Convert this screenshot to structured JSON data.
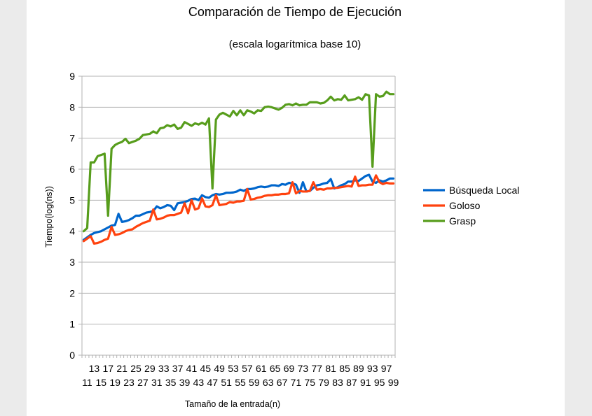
{
  "chart_data": {
    "type": "line",
    "title": "Comparación de Tiempo de Ejecución",
    "subtitle": "(escala logarítmica base 10)",
    "xlabel": "Tamaño de la entrada(n)",
    "ylabel": "Tiempo(log(ns))",
    "ylim": [
      0,
      9
    ],
    "yticks": [
      0,
      1,
      2,
      3,
      4,
      5,
      6,
      7,
      8,
      9
    ],
    "x": [
      10,
      11,
      12,
      13,
      14,
      15,
      16,
      17,
      18,
      19,
      20,
      21,
      22,
      23,
      24,
      25,
      26,
      27,
      28,
      29,
      30,
      31,
      32,
      33,
      34,
      35,
      36,
      37,
      38,
      39,
      40,
      41,
      42,
      43,
      44,
      45,
      46,
      47,
      48,
      49,
      50,
      51,
      52,
      53,
      54,
      55,
      56,
      57,
      58,
      59,
      60,
      61,
      62,
      63,
      64,
      65,
      66,
      67,
      68,
      69,
      70,
      71,
      72,
      73,
      74,
      75,
      76,
      77,
      78,
      79,
      80,
      81,
      82,
      83,
      84,
      85,
      86,
      87,
      88,
      89,
      90,
      91,
      92,
      93,
      94,
      95,
      96,
      97,
      98,
      99
    ],
    "xtick_labels_row1": [
      "13",
      "17",
      "21",
      "25",
      "29",
      "33",
      "37",
      "41",
      "45",
      "49",
      "53",
      "57",
      "61",
      "65",
      "69",
      "73",
      "77",
      "81",
      "85",
      "89",
      "93",
      "97"
    ],
    "xtick_labels_row2": [
      "11",
      "15",
      "19",
      "23",
      "27",
      "31",
      "35",
      "39",
      "43",
      "47",
      "51",
      "55",
      "59",
      "63",
      "67",
      "71",
      "75",
      "79",
      "83",
      "87",
      "91",
      "95",
      "99"
    ],
    "grid": "horizontal",
    "legend_position": "right",
    "series": [
      {
        "name": "Búsqueda Local",
        "color": "#0066cc",
        "values": [
          3.72,
          3.8,
          3.88,
          3.94,
          3.97,
          4.0,
          4.06,
          4.12,
          4.18,
          4.2,
          4.56,
          4.3,
          4.32,
          4.36,
          4.42,
          4.5,
          4.5,
          4.55,
          4.6,
          4.62,
          4.65,
          4.8,
          4.74,
          4.78,
          4.84,
          4.82,
          4.68,
          4.9,
          4.92,
          4.94,
          4.98,
          5.04,
          5.05,
          5.0,
          5.16,
          5.1,
          5.08,
          5.16,
          5.2,
          5.18,
          5.2,
          5.24,
          5.24,
          5.25,
          5.28,
          5.34,
          5.3,
          5.36,
          5.36,
          5.38,
          5.42,
          5.44,
          5.42,
          5.44,
          5.48,
          5.48,
          5.46,
          5.52,
          5.5,
          5.56,
          5.54,
          5.5,
          5.24,
          5.58,
          5.28,
          5.3,
          5.4,
          5.48,
          5.5,
          5.54,
          5.56,
          5.68,
          5.38,
          5.42,
          5.48,
          5.52,
          5.6,
          5.6,
          5.64,
          5.62,
          5.7,
          5.78,
          5.82,
          5.6,
          5.56,
          5.64,
          5.6,
          5.64,
          5.7,
          5.7
        ]
      },
      {
        "name": "Goloso",
        "color": "#ff420e",
        "values": [
          3.68,
          3.76,
          3.84,
          3.6,
          3.62,
          3.66,
          3.72,
          3.76,
          4.14,
          3.88,
          3.9,
          3.94,
          4.0,
          4.04,
          4.06,
          4.14,
          4.2,
          4.26,
          4.3,
          4.34,
          4.7,
          4.38,
          4.4,
          4.44,
          4.5,
          4.52,
          4.52,
          4.56,
          4.6,
          4.9,
          4.58,
          5.0,
          4.7,
          4.74,
          5.06,
          4.8,
          4.78,
          4.84,
          5.16,
          4.84,
          4.86,
          4.88,
          4.94,
          4.92,
          4.96,
          4.96,
          4.98,
          5.36,
          5.02,
          5.04,
          5.08,
          5.1,
          5.14,
          5.16,
          5.16,
          5.18,
          5.18,
          5.2,
          5.2,
          5.22,
          5.58,
          5.22,
          5.3,
          5.28,
          5.28,
          5.3,
          5.58,
          5.34,
          5.36,
          5.34,
          5.38,
          5.38,
          5.4,
          5.4,
          5.42,
          5.44,
          5.46,
          5.44,
          5.76,
          5.46,
          5.48,
          5.48,
          5.5,
          5.5,
          5.8,
          5.58,
          5.52,
          5.56,
          5.54,
          5.54
        ]
      },
      {
        "name": "Grasp",
        "color": "#579d1c",
        "values": [
          4.0,
          4.1,
          6.22,
          6.22,
          6.42,
          6.46,
          6.5,
          4.5,
          6.66,
          6.78,
          6.84,
          6.88,
          6.98,
          6.84,
          6.88,
          6.92,
          6.98,
          7.1,
          7.12,
          7.14,
          7.22,
          7.16,
          7.32,
          7.34,
          7.42,
          7.38,
          7.44,
          7.3,
          7.34,
          7.52,
          7.46,
          7.4,
          7.48,
          7.44,
          7.5,
          7.44,
          7.64,
          5.38,
          7.6,
          7.76,
          7.82,
          7.76,
          7.7,
          7.88,
          7.74,
          7.9,
          7.74,
          7.9,
          7.86,
          7.8,
          7.9,
          7.88,
          8.0,
          8.02,
          8.0,
          7.96,
          7.92,
          7.98,
          8.08,
          8.1,
          8.06,
          8.12,
          8.06,
          8.08,
          8.08,
          8.16,
          8.16,
          8.16,
          8.12,
          8.14,
          8.22,
          8.34,
          8.22,
          8.26,
          8.24,
          8.38,
          8.22,
          8.24,
          8.26,
          8.32,
          8.24,
          8.42,
          8.38,
          6.08,
          8.42,
          8.34,
          8.36,
          8.5,
          8.42,
          8.42
        ]
      }
    ]
  }
}
